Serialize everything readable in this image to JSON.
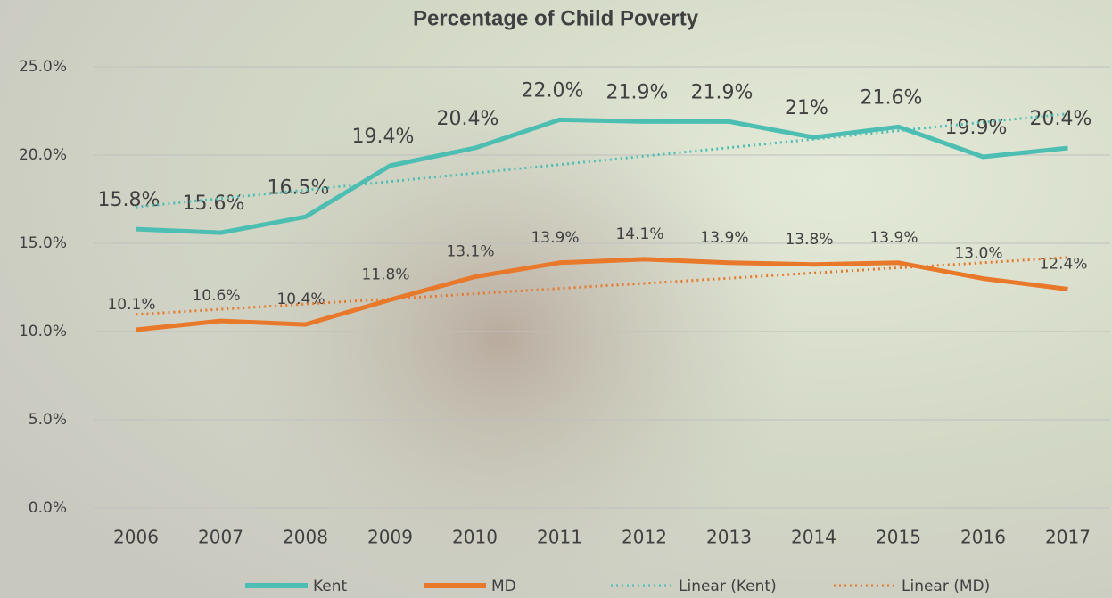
{
  "chart_data": {
    "type": "line",
    "title": "Percentage of Child Poverty",
    "categories": [
      "2006",
      "2007",
      "2008",
      "2009",
      "2010",
      "2011",
      "2012",
      "2013",
      "2014",
      "2015",
      "2016",
      "2017"
    ],
    "series": [
      {
        "name": "Kent",
        "color": "#4dbfb2",
        "style": "solid",
        "values": [
          15.8,
          15.6,
          16.5,
          19.4,
          20.4,
          22.0,
          21.9,
          21.9,
          21,
          21.6,
          19.9,
          20.4
        ],
        "value_labels": [
          "15.8%",
          "15.6%",
          "16.5%",
          "19.4%",
          "20.4%",
          "22.0%",
          "21.9%",
          "21.9%",
          "21%",
          "21.6%",
          "19.9%",
          "20.4%"
        ]
      },
      {
        "name": "MD",
        "color": "#e8782a",
        "style": "solid",
        "values": [
          10.1,
          10.6,
          10.4,
          11.8,
          13.1,
          13.9,
          14.1,
          13.9,
          13.8,
          13.9,
          13.0,
          12.4
        ],
        "value_labels": [
          "10.1%",
          "10.6%",
          "10.4%",
          "11.8%",
          "13.1%",
          "13.9%",
          "14.1%",
          "13.9%",
          "13.8%",
          "13.9%",
          "13.0%",
          "12.4%"
        ]
      },
      {
        "name": "Linear (Kent)",
        "color": "#4dbfb2",
        "style": "dotted",
        "values": [
          17.06,
          17.54,
          18.02,
          18.5,
          18.98,
          19.46,
          19.94,
          20.42,
          20.9,
          21.38,
          21.86,
          22.34
        ]
      },
      {
        "name": "Linear (MD)",
        "color": "#e8782a",
        "style": "dotted",
        "values": [
          10.97,
          11.26,
          11.56,
          11.85,
          12.14,
          12.44,
          12.73,
          13.02,
          13.32,
          13.61,
          13.9,
          14.2
        ]
      }
    ],
    "ylim": [
      0,
      25
    ],
    "yticks": [
      {
        "value": 0,
        "label": "0.0%"
      },
      {
        "value": 5,
        "label": "5.0%"
      },
      {
        "value": 10,
        "label": "10.0%"
      },
      {
        "value": 15,
        "label": "15.0%"
      },
      {
        "value": 20,
        "label": "20.0%"
      },
      {
        "value": 25,
        "label": "25.0%"
      }
    ],
    "grid": true,
    "legend": "bottom"
  }
}
